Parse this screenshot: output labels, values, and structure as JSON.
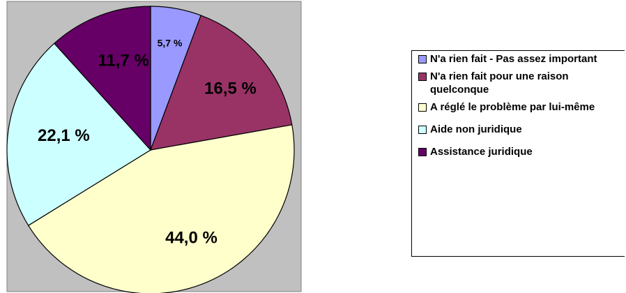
{
  "chart_data": {
    "type": "pie",
    "categories": [
      "N'a rien fait - Pas assez important",
      "N'a rien fait pour une raison quelconque",
      "A réglé le problème par lui-même",
      "Aide non juridique",
      "Assistance juridique"
    ],
    "values": [
      5.7,
      16.5,
      44.0,
      22.1,
      11.7
    ],
    "value_labels": [
      "5,7 %",
      "16,5 %",
      "44,0 %",
      "22,1 %",
      "11,7 %"
    ],
    "colors": [
      "#9999ff",
      "#993366",
      "#ffffcc",
      "#ccffff",
      "#660066"
    ],
    "legend": "right"
  }
}
